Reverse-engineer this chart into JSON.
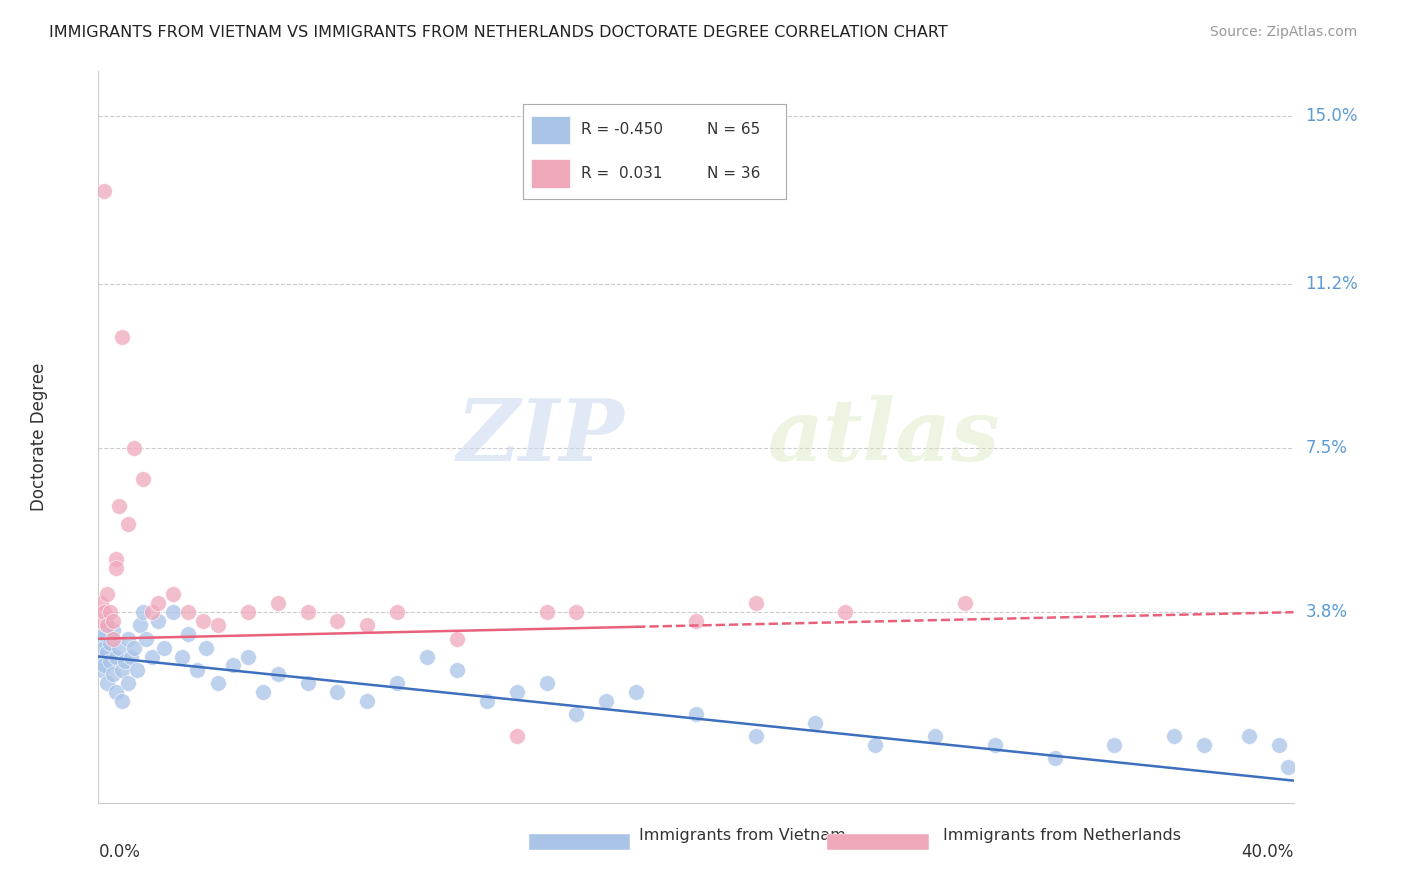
{
  "title": "IMMIGRANTS FROM VIETNAM VS IMMIGRANTS FROM NETHERLANDS DOCTORATE DEGREE CORRELATION CHART",
  "source": "Source: ZipAtlas.com",
  "ylabel": "Doctorate Degree",
  "y_ticks": [
    0.0,
    0.038,
    0.075,
    0.112,
    0.15
  ],
  "y_tick_labels": [
    "",
    "3.8%",
    "7.5%",
    "11.2%",
    "15.0%"
  ],
  "x_min": 0.0,
  "x_max": 0.4,
  "y_min": -0.005,
  "y_max": 0.16,
  "legend_label_vietnam": "Immigrants from Vietnam",
  "legend_label_netherlands": "Immigrants from Netherlands",
  "blue_color": "#aac4e8",
  "pink_color": "#f0a8bb",
  "blue_line_color": "#3e6fbe",
  "pink_line_color": "#e8607a",
  "title_color": "#222222",
  "right_axis_color": "#5b9bd5",
  "grid_color": "#cccccc",
  "watermark": "ZIPatlas",
  "legend_R_vietnam": "R = -0.450",
  "legend_N_vietnam": "N = 65",
  "legend_R_netherlands": "R =  0.031",
  "legend_N_netherlands": "N = 36",
  "series_vietnam_x": [
    0.001,
    0.001,
    0.001,
    0.002,
    0.002,
    0.002,
    0.003,
    0.003,
    0.003,
    0.004,
    0.004,
    0.005,
    0.005,
    0.006,
    0.006,
    0.007,
    0.008,
    0.008,
    0.009,
    0.01,
    0.01,
    0.011,
    0.012,
    0.013,
    0.014,
    0.015,
    0.016,
    0.018,
    0.02,
    0.022,
    0.025,
    0.028,
    0.03,
    0.033,
    0.036,
    0.04,
    0.045,
    0.05,
    0.055,
    0.06,
    0.07,
    0.08,
    0.09,
    0.1,
    0.11,
    0.12,
    0.13,
    0.14,
    0.15,
    0.16,
    0.17,
    0.18,
    0.2,
    0.22,
    0.24,
    0.26,
    0.28,
    0.3,
    0.32,
    0.34,
    0.36,
    0.37,
    0.385,
    0.395,
    0.398
  ],
  "series_vietnam_y": [
    0.028,
    0.025,
    0.032,
    0.03,
    0.033,
    0.026,
    0.035,
    0.022,
    0.029,
    0.031,
    0.027,
    0.034,
    0.024,
    0.028,
    0.02,
    0.03,
    0.025,
    0.018,
    0.027,
    0.032,
    0.022,
    0.028,
    0.03,
    0.025,
    0.035,
    0.038,
    0.032,
    0.028,
    0.036,
    0.03,
    0.038,
    0.028,
    0.033,
    0.025,
    0.03,
    0.022,
    0.026,
    0.028,
    0.02,
    0.024,
    0.022,
    0.02,
    0.018,
    0.022,
    0.028,
    0.025,
    0.018,
    0.02,
    0.022,
    0.015,
    0.018,
    0.02,
    0.015,
    0.01,
    0.013,
    0.008,
    0.01,
    0.008,
    0.005,
    0.008,
    0.01,
    0.008,
    0.01,
    0.008,
    0.003
  ],
  "series_netherlands_x": [
    0.001,
    0.001,
    0.002,
    0.002,
    0.003,
    0.003,
    0.004,
    0.005,
    0.005,
    0.006,
    0.006,
    0.007,
    0.008,
    0.01,
    0.012,
    0.015,
    0.018,
    0.02,
    0.025,
    0.03,
    0.035,
    0.04,
    0.05,
    0.06,
    0.07,
    0.08,
    0.09,
    0.1,
    0.12,
    0.14,
    0.15,
    0.16,
    0.2,
    0.22,
    0.25,
    0.29
  ],
  "series_netherlands_y": [
    0.04,
    0.036,
    0.038,
    0.133,
    0.042,
    0.035,
    0.038,
    0.032,
    0.036,
    0.05,
    0.048,
    0.062,
    0.1,
    0.058,
    0.075,
    0.068,
    0.038,
    0.04,
    0.042,
    0.038,
    0.036,
    0.035,
    0.038,
    0.04,
    0.038,
    0.036,
    0.035,
    0.038,
    0.032,
    0.01,
    0.038,
    0.038,
    0.036,
    0.04,
    0.038,
    0.04
  ],
  "vn_line_x0": 0.0,
  "vn_line_x1": 0.4,
  "vn_line_y0": 0.028,
  "vn_line_y1": 0.0,
  "nl_line_x0": 0.0,
  "nl_line_x1": 0.4,
  "nl_line_y0": 0.032,
  "nl_line_y1": 0.038
}
